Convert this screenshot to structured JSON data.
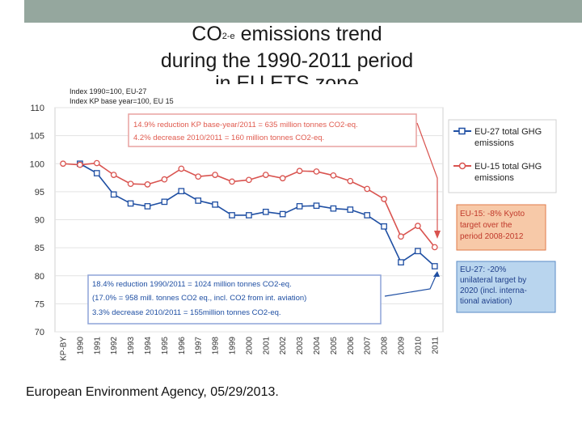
{
  "slide": {
    "title_main": "CO",
    "title_sub": "2-e",
    "title_rest": " emissions trend",
    "title_line2": "during the 1990-2011 period",
    "title_line3": "in EU ETS zone",
    "source": "European Environment Agency, 05/29/2013."
  },
  "chart_data": {
    "type": "line",
    "index_note_1": "Index 1990=100, EU-27",
    "index_note_2": "Index KP base year=100, EU 15",
    "categories": [
      "KP-BY",
      "1990",
      "1991",
      "1992",
      "1993",
      "1994",
      "1995",
      "1996",
      "1997",
      "1998",
      "1999",
      "2000",
      "2001",
      "2002",
      "2003",
      "2004",
      "2005",
      "2006",
      "2007",
      "2008",
      "2009",
      "2010",
      "2011"
    ],
    "ylim": [
      70,
      110
    ],
    "yticks": [
      70,
      75,
      80,
      85,
      90,
      95,
      100,
      105,
      110
    ],
    "series": [
      {
        "name": "EU-27 total GHG emissions",
        "color": "#1f4fa3",
        "values": [
          null,
          100,
          98.3,
          94.5,
          92.9,
          92.4,
          93.2,
          95.1,
          93.4,
          92.7,
          90.8,
          90.8,
          91.4,
          91.0,
          92.4,
          92.5,
          92.0,
          91.8,
          90.8,
          88.8,
          82.4,
          84.4,
          81.7
        ]
      },
      {
        "name": "EU-15 total GHG emissions",
        "color": "#d9534f",
        "values": [
          100,
          99.8,
          100.1,
          98.0,
          96.4,
          96.3,
          97.2,
          99.1,
          97.7,
          98.0,
          96.8,
          97.1,
          98.0,
          97.4,
          98.7,
          98.6,
          97.9,
          96.9,
          95.5,
          93.7,
          87.0,
          88.9,
          85.1
        ]
      }
    ],
    "legend_position": "right",
    "annotations": {
      "top_box": [
        "14.9% reduction KP base-year/2011 = 635 million tonnes CO2-eq.",
        "4.2% decrease 2010/2011 = 160 million tonnes CO2-eq."
      ],
      "bottom_box": [
        "18.4% reduction 1990/2011 = 1024 million tonnes CO2-eq.",
        "(17.0% = 958 mill. tonnes CO2 eq., incl. CO2 from int. aviation)",
        "3.3% decrease 2010/2011 = 155million tonnes CO2-eq."
      ],
      "eu15_target": [
        "EU-15: -8% Kyoto",
        "target over the",
        "period 2008-2012"
      ],
      "eu27_target": [
        "EU-27: -20%",
        "unilateral target by",
        "2020 (incl. interna-",
        "tional aviation)"
      ]
    }
  }
}
